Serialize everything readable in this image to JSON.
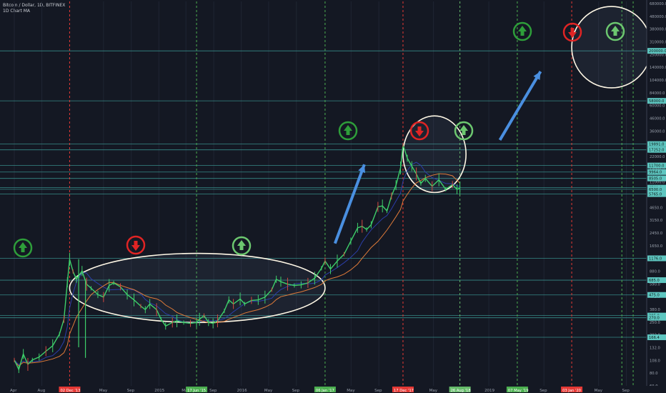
{
  "header": {
    "title": "Bitcoin / Dollar, 1D, BITFINEX",
    "subtitle": "1D Chart MA"
  },
  "chart_data": {
    "type": "line",
    "scale": "log",
    "ylim": [
      50,
      680000
    ],
    "y_ticks": [
      "680000.0",
      "480000.0",
      "380000.0",
      "310000.0",
      "250000.0",
      "140000.0",
      "104000.0",
      "84000.0",
      "60000.0",
      "46000.0",
      "36000.0",
      "28000.0",
      "22000.0",
      "14000.0",
      "11000.0",
      "7450.0",
      "4650.0",
      "3150.0",
      "2450.0",
      "1650.0",
      "1310.0",
      "880.0",
      "590.0",
      "475.0",
      "380.0",
      "250.0",
      "202.0",
      "132.0",
      "108.0",
      "80.0",
      "60.0"
    ],
    "x_ticks": [
      {
        "label": "Apr",
        "day": 0
      },
      {
        "label": "Aug",
        "day": 122
      },
      {
        "label": "May",
        "day": 395
      },
      {
        "label": "Sep",
        "day": 518
      },
      {
        "label": "2015",
        "day": 640
      },
      {
        "label": "May",
        "day": 760
      },
      {
        "label": "Sep",
        "day": 883
      },
      {
        "label": "2016",
        "day": 1005
      },
      {
        "label": "May",
        "day": 1126
      },
      {
        "label": "Sep",
        "day": 1249
      },
      {
        "label": "May",
        "day": 1491
      },
      {
        "label": "Sep",
        "day": 1614
      },
      {
        "label": "May",
        "day": 1856
      },
      {
        "label": "2019",
        "day": 2101
      },
      {
        "label": "Sep",
        "day": 2345
      },
      {
        "label": "May",
        "day": 2587
      },
      {
        "label": "Sep",
        "day": 2710
      }
    ],
    "date_labels": [
      {
        "label": "02 Dec '13",
        "day": 245,
        "color": "#e53935"
      },
      {
        "label": "17 Jun '15",
        "day": 807,
        "color": "#4caf50"
      },
      {
        "label": "06 Jan '17",
        "day": 1376,
        "color": "#4caf50"
      },
      {
        "label": "17 Dec '17",
        "day": 1721,
        "color": "#e53935"
      },
      {
        "label": "26 Aug '18",
        "day": 1973,
        "color": "#66bb6a"
      },
      {
        "label": "07 May '19",
        "day": 2227,
        "color": "#4caf50"
      },
      {
        "label": "03 Jan '20",
        "day": 2468,
        "color": "#e53935"
      }
    ],
    "levels": [
      {
        "value": 200000,
        "label": "200000.0"
      },
      {
        "value": 58000,
        "label": "58000.0"
      },
      {
        "value": 19891,
        "label": "19891.0"
      },
      {
        "value": 17252,
        "label": "17252.0"
      },
      {
        "value": 11700,
        "label": "11700.0"
      },
      {
        "value": 9964,
        "label": "9964.0"
      },
      {
        "value": 8505,
        "label": "8505.0"
      },
      {
        "value": 6760,
        "label": "6760.0"
      },
      {
        "value": 6500,
        "label": "6500.0"
      },
      {
        "value": 5765,
        "label": "5765.0"
      },
      {
        "value": 1176,
        "label": "1176.0"
      },
      {
        "value": 685,
        "label": "685.0"
      },
      {
        "value": 475,
        "label": "475.0"
      },
      {
        "value": 285,
        "label": "285.0"
      },
      {
        "value": 270,
        "label": "270.0"
      },
      {
        "value": 166.4,
        "label": "166.4"
      }
    ],
    "price": [
      {
        "day": 0,
        "value": 95
      },
      {
        "day": 20,
        "value": 75
      },
      {
        "day": 40,
        "value": 110
      },
      {
        "day": 60,
        "value": 85
      },
      {
        "day": 80,
        "value": 95
      },
      {
        "day": 110,
        "value": 102
      },
      {
        "day": 140,
        "value": 118
      },
      {
        "day": 170,
        "value": 135
      },
      {
        "day": 200,
        "value": 180
      },
      {
        "day": 220,
        "value": 260
      },
      {
        "day": 235,
        "value": 650
      },
      {
        "day": 245,
        "value": 1150
      },
      {
        "day": 260,
        "value": 850
      },
      {
        "day": 275,
        "value": 700
      },
      {
        "day": 300,
        "value": 860
      },
      {
        "day": 320,
        "value": 620
      },
      {
        "day": 340,
        "value": 560
      },
      {
        "day": 370,
        "value": 480
      },
      {
        "day": 395,
        "value": 450
      },
      {
        "day": 420,
        "value": 600
      },
      {
        "day": 440,
        "value": 640
      },
      {
        "day": 470,
        "value": 580
      },
      {
        "day": 500,
        "value": 480
      },
      {
        "day": 530,
        "value": 420
      },
      {
        "day": 560,
        "value": 360
      },
      {
        "day": 580,
        "value": 330
      },
      {
        "day": 600,
        "value": 380
      },
      {
        "day": 630,
        "value": 330
      },
      {
        "day": 650,
        "value": 260
      },
      {
        "day": 670,
        "value": 220
      },
      {
        "day": 700,
        "value": 240
      },
      {
        "day": 720,
        "value": 250
      },
      {
        "day": 750,
        "value": 240
      },
      {
        "day": 780,
        "value": 235
      },
      {
        "day": 807,
        "value": 240
      },
      {
        "day": 820,
        "value": 260
      },
      {
        "day": 840,
        "value": 285
      },
      {
        "day": 860,
        "value": 240
      },
      {
        "day": 880,
        "value": 235
      },
      {
        "day": 900,
        "value": 250
      },
      {
        "day": 930,
        "value": 320
      },
      {
        "day": 950,
        "value": 420
      },
      {
        "day": 970,
        "value": 380
      },
      {
        "day": 1000,
        "value": 430
      },
      {
        "day": 1020,
        "value": 380
      },
      {
        "day": 1050,
        "value": 415
      },
      {
        "day": 1080,
        "value": 420
      },
      {
        "day": 1110,
        "value": 450
      },
      {
        "day": 1140,
        "value": 540
      },
      {
        "day": 1160,
        "value": 700
      },
      {
        "day": 1180,
        "value": 660
      },
      {
        "day": 1210,
        "value": 620
      },
      {
        "day": 1240,
        "value": 600
      },
      {
        "day": 1270,
        "value": 610
      },
      {
        "day": 1300,
        "value": 640
      },
      {
        "day": 1330,
        "value": 720
      },
      {
        "day": 1360,
        "value": 920
      },
      {
        "day": 1376,
        "value": 1100
      },
      {
        "day": 1400,
        "value": 900
      },
      {
        "day": 1430,
        "value": 1100
      },
      {
        "day": 1460,
        "value": 1300
      },
      {
        "day": 1490,
        "value": 1800
      },
      {
        "day": 1520,
        "value": 2500
      },
      {
        "day": 1540,
        "value": 2600
      },
      {
        "day": 1560,
        "value": 2400
      },
      {
        "day": 1580,
        "value": 2700
      },
      {
        "day": 1610,
        "value": 4200
      },
      {
        "day": 1630,
        "value": 4300
      },
      {
        "day": 1650,
        "value": 3800
      },
      {
        "day": 1670,
        "value": 5500
      },
      {
        "day": 1690,
        "value": 7200
      },
      {
        "day": 1710,
        "value": 11000
      },
      {
        "day": 1721,
        "value": 19500
      },
      {
        "day": 1740,
        "value": 14000
      },
      {
        "day": 1760,
        "value": 11500
      },
      {
        "day": 1780,
        "value": 9500
      },
      {
        "day": 1800,
        "value": 7500
      },
      {
        "day": 1820,
        "value": 8500
      },
      {
        "day": 1850,
        "value": 7000
      },
      {
        "day": 1880,
        "value": 8200
      },
      {
        "day": 1910,
        "value": 6500
      },
      {
        "day": 1940,
        "value": 7300
      },
      {
        "day": 1960,
        "value": 6500
      },
      {
        "day": 1973,
        "value": 6700
      }
    ]
  }
}
